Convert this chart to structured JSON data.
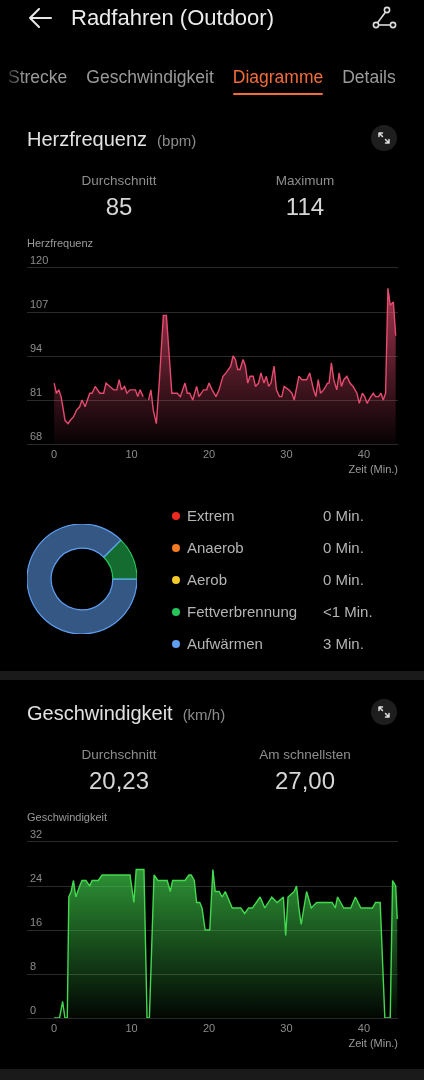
{
  "chart_data": [
    {
      "type": "other",
      "title": "Radfahren (Outdoor)",
      "annotations": [
        "Strecke",
        "Geschwindigkeit",
        "Diagramme",
        "Details"
      ]
    },
    {
      "type": "area",
      "title": "Herzfrequenz",
      "subtitle": "(bpm)",
      "annotations": [
        "Durchschnitt",
        "85",
        "Maximum",
        "114"
      ],
      "ylabel": "Herzfrequenz",
      "xlabel": "Zeit (Min.)",
      "color": "#e64a6e",
      "grid": "y",
      "xlim": [
        -3.5,
        44.4
      ],
      "xticks": [
        0,
        10,
        20,
        30,
        40
      ],
      "ylim": [
        68,
        120
      ],
      "yticks": [
        68,
        81,
        94,
        107,
        120
      ],
      "x": [
        0,
        0.3,
        0.6,
        0.9,
        1.2,
        1.4,
        1.8,
        2.1,
        2.5,
        2.9,
        3.3,
        3.6,
        4.0,
        4.3,
        4.6,
        4.9,
        5.3,
        5.9,
        6.4,
        6.7,
        7.2,
        7.7,
        8.1,
        8.4,
        8.7,
        9.1,
        9.4,
        9.8,
        10.5,
        10.8,
        11.1,
        11.5,
        11.8,
        12.2,
        12.5,
        12.8,
        13.2,
        13.6,
        14.1,
        14.5,
        15.2,
        15.9,
        16.3,
        16.9,
        17.2,
        17.5,
        17.9,
        18.4,
        18.7,
        19.3,
        19.7,
        20.0,
        20.4,
        20.9,
        21.3,
        21.8,
        22.2,
        22.8,
        23.1,
        23.4,
        23.7,
        24.0,
        24.4,
        24.7,
        25.0,
        25.3,
        25.7,
        26.0,
        26.4,
        26.7,
        27.1,
        27.4,
        27.7,
        28.0,
        28.4,
        28.7,
        29.1,
        29.4,
        29.7,
        30.3,
        30.7,
        31.0,
        31.6,
        32.0,
        32.6,
        33.0,
        33.5,
        33.8,
        34.1,
        34.4,
        34.8,
        35.3,
        35.5,
        35.8,
        36.1,
        36.5,
        36.8,
        37.1,
        37.4,
        37.8,
        38.2,
        38.6,
        39.1,
        39.4,
        39.8,
        40.1,
        40.4,
        40.9,
        41.2,
        41.5,
        41.9,
        42.2,
        42.5,
        42.8,
        43.1,
        43.4,
        43.8,
        44.1
      ],
      "values": [
        86,
        83,
        84,
        82,
        78,
        75,
        74,
        75,
        76,
        78,
        79,
        81,
        79,
        81,
        83,
        83,
        85,
        83,
        83,
        86,
        85,
        84,
        84,
        87,
        84,
        85,
        83,
        84,
        84,
        82,
        84,
        82,
        null,
        81,
        84,
        78,
        74,
        87,
        106,
        106,
        83,
        83,
        82,
        86,
        83,
        83,
        81,
        85,
        82,
        84,
        84,
        86,
        84,
        82,
        84,
        88,
        89,
        91,
        94,
        93,
        90,
        90,
        93,
        91,
        86,
        88,
        88,
        85,
        86,
        89,
        86,
        88,
        85,
        86,
        91,
        84,
        82,
        82,
        85,
        84,
        83,
        81,
        88,
        87,
        87,
        89,
        84,
        82,
        87,
        83,
        84,
        86,
        86,
        92,
        87,
        84,
        89,
        85,
        87,
        88,
        86,
        85,
        83,
        80,
        83,
        82,
        80,
        82,
        83,
        82,
        82,
        83,
        81,
        83,
        114,
        109,
        110,
        100
      ]
    },
    {
      "type": "donut",
      "categories": [
        "Extrem",
        "Anaerob",
        "Aerob",
        "Fettverbrennung",
        "Aufwärmen"
      ],
      "values": [
        0,
        0,
        0,
        0.43,
        3
      ],
      "colors": [
        "#f02a21",
        "#f57a22",
        "#f6c92a",
        "#25c45a",
        "#5e9ff0"
      ],
      "value_labels": [
        "0 Min.",
        "0 Min.",
        "0 Min.",
        "<1 Min.",
        "3 Min."
      ],
      "legend": "right"
    },
    {
      "type": "area",
      "title": "Geschwindigkeit",
      "subtitle": "(km/h)",
      "annotations": [
        "Durchschnitt",
        "20,23",
        "Am schnellsten",
        "27,00"
      ],
      "ylabel": "Geschwindigkeit",
      "xlabel": "Zeit (Min.)",
      "color": "#43d94e",
      "grid": "y",
      "xlim": [
        -3.5,
        44.4
      ],
      "xticks": [
        0,
        10,
        20,
        30,
        40
      ],
      "ylim": [
        0,
        32
      ],
      "yticks": [
        0,
        8,
        16,
        24,
        32
      ],
      "x": [
        0,
        0.7,
        1.1,
        1.4,
        1.7,
        1.9,
        2.2,
        2.5,
        2.8,
        3.3,
        3.6,
        4.1,
        4.6,
        4.9,
        5.7,
        6.2,
        9.8,
        10.3,
        10.6,
        11.6,
        12.0,
        12.3,
        12.9,
        13.4,
        14.6,
        15.0,
        15.3,
        16.3,
        16.9,
        17.4,
        17.7,
        18.1,
        18.4,
        18.8,
        19.1,
        19.5,
        19.8,
        20.1,
        20.5,
        20.8,
        21.3,
        21.7,
        22.1,
        23.0,
        24.1,
        24.6,
        25.1,
        25.6,
        26.6,
        27.2,
        28.1,
        28.8,
        29.6,
        29.9,
        30.2,
        31.0,
        31.3,
        31.6,
        31.9,
        32.6,
        33.2,
        33.9,
        34.7,
        35.6,
        35.9,
        36.3,
        36.6,
        37.0,
        37.4,
        38.3,
        38.9,
        39.6,
        41.1,
        41.5,
        42.1,
        42.7,
        43.4,
        43.7,
        44.1,
        44.3
      ],
      "values": [
        0,
        0,
        3,
        0,
        0,
        22,
        23,
        25,
        22,
        24,
        25,
        25,
        24,
        25,
        25,
        26,
        26,
        21,
        27,
        27,
        0,
        0,
        26,
        25,
        25,
        23,
        25,
        25,
        25,
        26,
        26,
        25,
        21,
        21,
        20,
        16,
        16,
        16,
        27,
        23,
        23,
        22,
        23,
        20,
        20,
        19,
        20,
        20,
        22,
        20,
        22,
        21,
        22,
        15,
        22,
        23,
        24,
        20,
        17,
        23,
        20,
        21,
        21,
        21,
        21,
        20,
        22,
        21,
        20,
        20,
        22,
        20,
        20,
        21,
        21,
        0,
        0,
        25,
        24,
        18
      ]
    }
  ]
}
